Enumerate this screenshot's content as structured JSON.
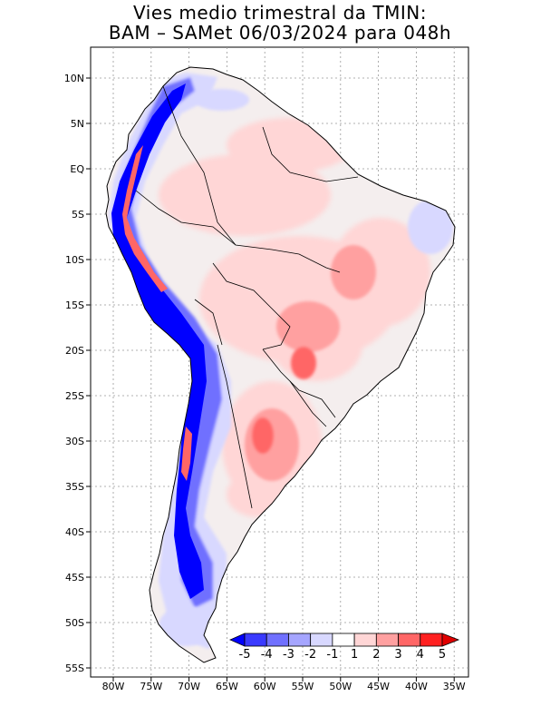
{
  "title_line1": "Vies medio trimestral da TMIN:",
  "title_line2": "BAM – SAMet 06/03/2024  para 048h",
  "lat_labels": [
    "10N",
    "5N",
    "EQ",
    "5S",
    "10S",
    "15S",
    "20S",
    "25S",
    "30S",
    "35S",
    "40S",
    "45S",
    "50S",
    "55S"
  ],
  "lon_labels": [
    "80W",
    "75W",
    "70W",
    "65W",
    "60W",
    "55W",
    "50W",
    "45W",
    "40W",
    "35W"
  ],
  "colorbar": {
    "labels": [
      "-5",
      "-4",
      "-3",
      "-2",
      "-1",
      "1",
      "2",
      "3",
      "4",
      "5"
    ],
    "colors": [
      "#0000ff",
      "#3a3aff",
      "#7070ff",
      "#a5a5ff",
      "#d8d8ff",
      "#ffffff",
      "#ffd6d6",
      "#ffa0a0",
      "#ff6666",
      "#ff2020",
      "#e00000"
    ]
  },
  "map_colors": {
    "land_neutral": "#f4eeee",
    "warm_light": "#ffd6d6",
    "warm_mid": "#ffa0a0",
    "warm_strong": "#ff6666",
    "cold_light": "#d8d8ff",
    "cold_mid": "#7070ff",
    "cold_strong": "#0000ff"
  }
}
